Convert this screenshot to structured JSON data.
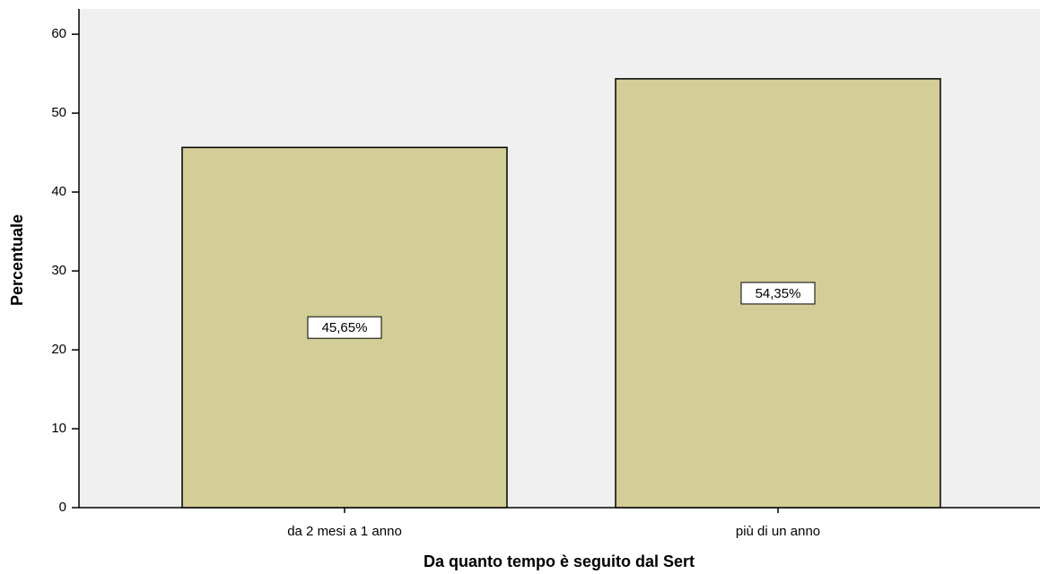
{
  "chart_data": {
    "type": "bar",
    "x_label": "Da quanto tempo è seguito dal Sert",
    "y_label": "Percentuale",
    "categories": [
      "da 2 mesi a 1 anno",
      "più di un anno"
    ],
    "values": [
      45.65,
      54.35
    ],
    "value_labels": [
      "45,65%",
      "54,35%"
    ],
    "color": "#d3cd97",
    "ylim": [
      0,
      63.2
    ],
    "yticks": [
      0,
      10,
      20,
      30,
      40,
      50,
      60
    ],
    "grid": false
  }
}
